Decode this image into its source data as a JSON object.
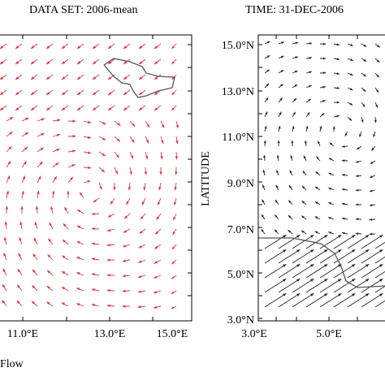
{
  "header": {
    "dataset_label": "DATA SET: 2006-mean",
    "time_label": "TIME: 31-DEC-2006"
  },
  "caption": "Flow",
  "colors": {
    "left_arrows": "#d43c3c",
    "right_arrows": "#222222",
    "coast": "#555555"
  },
  "chart_data": [
    {
      "type": "vector_field",
      "panel": "left",
      "x_ticks": [
        "11.0°E",
        "13.0°E",
        "15.0°E"
      ],
      "x_tick_values": [
        11,
        13,
        15
      ],
      "xlim": [
        8.7,
        15.0
      ],
      "ylim": [
        3.0,
        15.0
      ],
      "arrow_color": "#d43c3c",
      "grid": false
    },
    {
      "type": "vector_field",
      "panel": "right",
      "ylabel": "LATITUDE",
      "x_ticks": [
        "3.0°E",
        "5.0°E"
      ],
      "x_tick_values": [
        3,
        5
      ],
      "y_ticks": [
        "3.0°N",
        "5.0°N",
        "7.0°N",
        "9.0°N",
        "11.0°N",
        "13.0°N",
        "15.0°N"
      ],
      "y_tick_values": [
        3,
        5,
        7,
        9,
        11,
        13,
        15
      ],
      "xlim": [
        3.0,
        6.6
      ],
      "ylim": [
        3.0,
        15.0
      ],
      "arrow_color": "#222222",
      "grid": false
    }
  ]
}
